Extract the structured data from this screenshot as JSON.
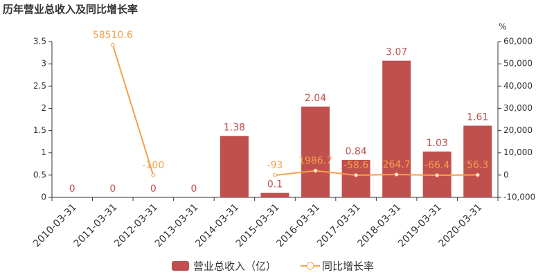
{
  "chart_data": {
    "type": "bar_line",
    "title": "历年营业总收入及同比增长率",
    "y2label": "%",
    "categories": [
      "2010-03-31",
      "2011-03-31",
      "2012-03-31",
      "2013-03-31",
      "2014-03-31",
      "2015-03-31",
      "2016-03-31",
      "2017-03-31",
      "2018-03-31",
      "2019-03-31",
      "2020-03-31"
    ],
    "series": [
      {
        "name": "营业总收入（亿）",
        "color": "#c0504d",
        "type": "bar",
        "values": [
          0,
          0,
          0,
          0,
          1.38,
          0.1,
          2.04,
          0.84,
          3.07,
          1.03,
          1.61
        ]
      },
      {
        "name": "同比增长率",
        "color": "#f5a04a",
        "type": "line",
        "axis": "y2",
        "values": [
          null,
          58510.6,
          -100,
          null,
          null,
          -93,
          1986.7,
          -58.6,
          264.7,
          -66.4,
          56.3
        ]
      }
    ],
    "ylim": [
      0,
      3.5
    ],
    "yticks": [
      0,
      0.5,
      1,
      1.5,
      2,
      2.5,
      3,
      3.5
    ],
    "y2lim": [
      -10000,
      60000
    ],
    "y2ticks": [
      {
        "value": -10000,
        "label": "-10,000"
      },
      0,
      {
        "value": 10000,
        "label": "10,000"
      },
      {
        "value": 20000,
        "label": "20,000"
      },
      {
        "value": 30000,
        "label": "30,000"
      },
      {
        "value": 40000,
        "label": "40,000"
      },
      {
        "value": 50000,
        "label": "50,000"
      },
      {
        "value": 60000,
        "label": "60,000"
      }
    ]
  }
}
